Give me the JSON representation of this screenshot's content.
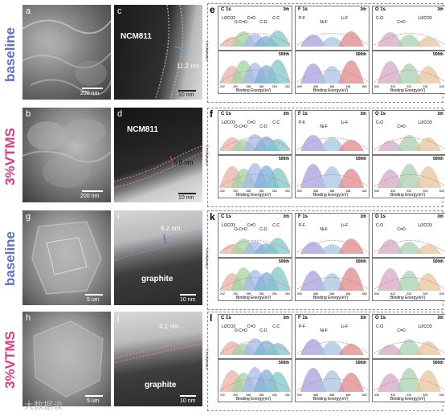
{
  "row_labels": [
    "baseline",
    "3%VTMS",
    "baseline",
    "3%VTMS"
  ],
  "row_label_colors": [
    "#5a72d8",
    "#e2387c",
    "#5a72d8",
    "#e2387c"
  ],
  "panels": {
    "a": {
      "letter": "a",
      "scale": "200 nm"
    },
    "b": {
      "letter": "b",
      "scale": "200 nm"
    },
    "c": {
      "letter": "c",
      "material": "NCM811",
      "thickness": "11.2 nm",
      "scale": "10 nm"
    },
    "d": {
      "letter": "d",
      "material": "NCM811",
      "thickness": "5.8 nm",
      "scale": "10 nm"
    },
    "g": {
      "letter": "g",
      "scale": "5 um"
    },
    "h": {
      "letter": "h",
      "scale": "5 um"
    },
    "i": {
      "letter": "i",
      "material": "graphite",
      "thickness": "9.2 nm",
      "scale": "10 nm"
    },
    "j": {
      "letter": "j",
      "material": "graphite",
      "thickness": "4.1 nm",
      "scale": "10 nm"
    }
  },
  "xps_common": {
    "ylabel": "Intensity(a.u.)",
    "xlabel": "Binding Energy(eV)",
    "cycle_top": "3th",
    "cycle_bottom": "500th",
    "col_titles": [
      "C 1s",
      "F 1s",
      "O 1s"
    ]
  },
  "xps_rows": [
    {
      "letter": "e",
      "c_peaks": [
        "Li2CO3",
        "O-C=O",
        "C=O",
        "C-O",
        "C-C"
      ],
      "f_peaks": [
        "P-F",
        "Ni-F",
        "Li-F"
      ],
      "o_peaks": [
        "C-O",
        "C=O",
        "Li2CO3"
      ],
      "c_ticks": [
        "292",
        "290",
        "288",
        "286",
        "284",
        "282"
      ],
      "f_ticks": [
        "690",
        "688",
        "686",
        "684",
        "682"
      ],
      "o_ticks": [
        "536",
        "534",
        "532",
        "530",
        "528"
      ]
    },
    {
      "letter": "f",
      "c_peaks": [
        "Li2CO3",
        "O-C=O",
        "C=O",
        "C-O",
        "C-C"
      ],
      "f_peaks": [
        "P-F",
        "Ni-F",
        "Li-F"
      ],
      "o_peaks": [
        "C-O",
        "C=O",
        "Li2CO3"
      ],
      "c_ticks": [
        "292",
        "290",
        "288",
        "286",
        "284",
        "282"
      ],
      "f_ticks": [
        "690",
        "688",
        "686",
        "684",
        "682"
      ],
      "o_ticks": [
        "536",
        "534",
        "532",
        "530",
        "528"
      ]
    },
    {
      "letter": "k",
      "c_peaks": [
        "Li2CO3",
        "O-C=O",
        "C=O",
        "C-O",
        "C-C"
      ],
      "f_peaks": [
        "P-F",
        "Ni-F",
        "Li-F"
      ],
      "o_peaks": [
        "C-O",
        "C=O",
        "Li2CO3"
      ],
      "c_ticks": [
        "292",
        "290",
        "288",
        "286",
        "284",
        "282"
      ],
      "f_ticks": [
        "690",
        "688",
        "686",
        "684",
        "682"
      ],
      "o_ticks": [
        "536",
        "534",
        "532",
        "530",
        "528"
      ]
    },
    {
      "letter": "l",
      "c_peaks": [
        "Li2CO3",
        "O-C=O",
        "C=O",
        "C-O",
        "C-C"
      ],
      "f_peaks": [
        "P-F",
        "Ni-F",
        "Li-F"
      ],
      "o_peaks": [
        "C-O",
        "C=O",
        "Li2CO3"
      ],
      "c_ticks": [
        "292",
        "290",
        "288",
        "286",
        "284",
        "282"
      ],
      "f_ticks": [
        "690",
        "688",
        "686",
        "684",
        "682"
      ],
      "o_ticks": [
        "536",
        "534",
        "532",
        "530",
        "528"
      ]
    }
  ],
  "watermark": "大数据谈"
}
